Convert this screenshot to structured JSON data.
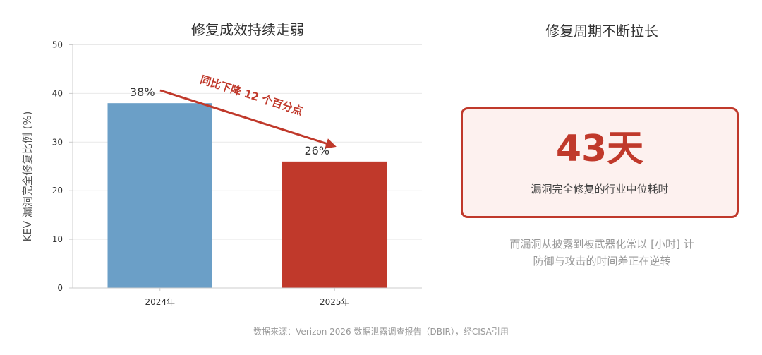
{
  "chart_data": {
    "type": "bar",
    "title": "修复成效持续走弱",
    "ylabel": "KEV 漏洞完全修复比例 (%)",
    "xlabel": "",
    "categories": [
      "2024年",
      "2025年"
    ],
    "values": [
      38,
      26
    ],
    "data_labels": [
      "38%",
      "26%"
    ],
    "ylim": [
      0,
      50
    ],
    "yticks": [
      0,
      10,
      20,
      30,
      40,
      50
    ],
    "bar_colors": [
      "#6b9fc7",
      "#c0392b"
    ],
    "grid": true,
    "annotation": "同比下降 12 个百分点"
  },
  "stat_panel": {
    "title": "修复周期不断拉长",
    "value": "43天",
    "caption": "漏洞完全修复的行业中位耗时",
    "note_lines": [
      "而漏洞从披露到被武器化常以 [小时] 计",
      "防御与攻击的时间差正在逆转"
    ]
  },
  "source": "数据来源：Verizon 2026 数据泄露调查报告（DBIR），经CISA引用",
  "colors": {
    "accent": "#c0392b",
    "blue": "#6b9fc7",
    "box_bg": "#fdf1ef"
  }
}
